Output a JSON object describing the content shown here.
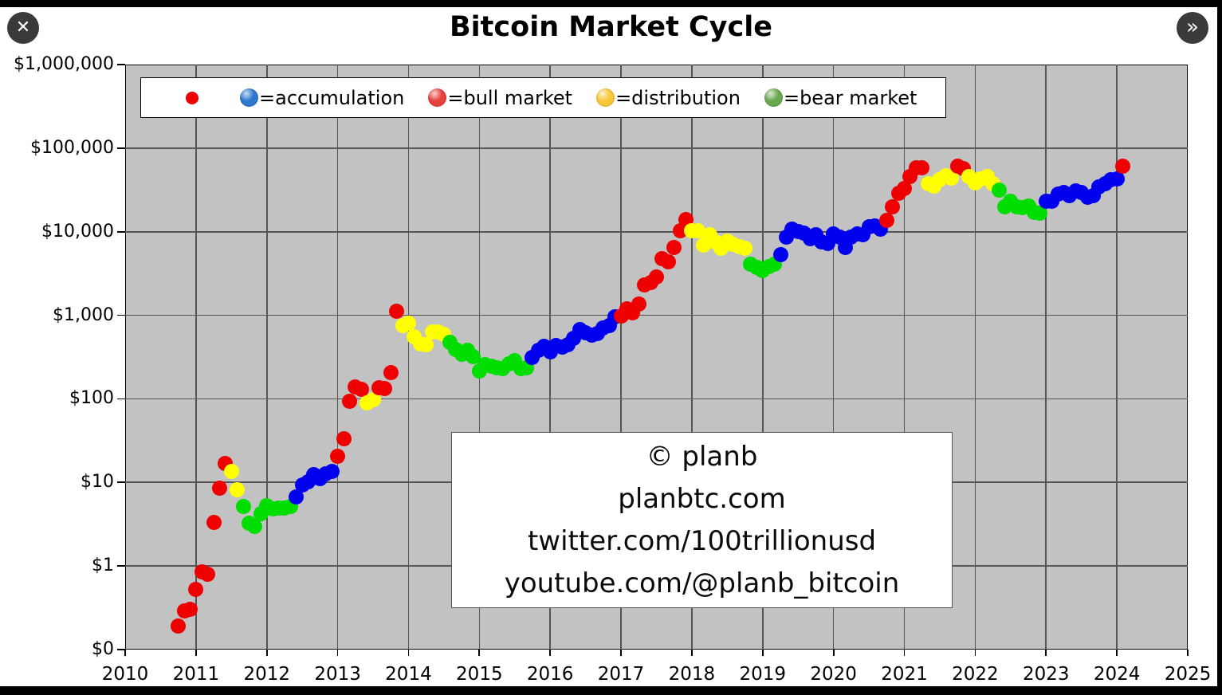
{
  "header": {
    "title": "Bitcoin Market Cycle",
    "close_icon": "✕",
    "forward_icon": "»"
  },
  "legend": {
    "marker": {
      "label": "",
      "color": "#ee0000"
    },
    "items": [
      {
        "label": "=accumulation",
        "color": "#2e77d0"
      },
      {
        "label": "=bull market",
        "color": "#e8413c"
      },
      {
        "label": "=distribution",
        "color": "#f8c838"
      },
      {
        "label": "=bear market",
        "color": "#6aa84f"
      }
    ]
  },
  "watermark": {
    "lines": [
      "© planb",
      "planbtc.com",
      "twitter.com/100trillionusd",
      "youtube.com/@planb_bitcoin"
    ]
  },
  "chart_data": {
    "type": "scatter",
    "title": "Bitcoin Market Cycle",
    "x_axis": {
      "min": 2010,
      "max": 2025,
      "ticks": [
        2010,
        2011,
        2012,
        2013,
        2014,
        2015,
        2016,
        2017,
        2018,
        2019,
        2020,
        2021,
        2022,
        2023,
        2024,
        2025
      ]
    },
    "y_axis": {
      "scale": "log",
      "min": 0.1,
      "max": 1000000,
      "ticks": [
        {
          "label": "$1,000,000",
          "value": 1000000
        },
        {
          "label": "$100,000",
          "value": 100000
        },
        {
          "label": "$10,000",
          "value": 10000
        },
        {
          "label": "$1,000",
          "value": 1000
        },
        {
          "label": "$100",
          "value": 100
        },
        {
          "label": "$10",
          "value": 10
        },
        {
          "label": "$1",
          "value": 1
        },
        {
          "label": "$0",
          "value": 0.1
        }
      ]
    },
    "grid": true,
    "legend_position": "top",
    "phase_colors": {
      "accumulation": "#0000ee",
      "bull": "#ee0000",
      "distribution": "#ffff00",
      "bear": "#00dd00"
    },
    "points": [
      [
        "2010-10",
        0.19,
        "bull"
      ],
      [
        "2010-11",
        0.29,
        "bull"
      ],
      [
        "2010-12",
        0.3,
        "bull"
      ],
      [
        "2011-01",
        0.52,
        "bull"
      ],
      [
        "2011-02",
        0.86,
        "bull"
      ],
      [
        "2011-03",
        0.79,
        "bull"
      ],
      [
        "2011-04",
        3.33,
        "bull"
      ],
      [
        "2011-05",
        8.6,
        "bull"
      ],
      [
        "2011-06",
        16.7,
        "bull"
      ],
      [
        "2011-07",
        13.4,
        "distribution"
      ],
      [
        "2011-08",
        8.2,
        "distribution"
      ],
      [
        "2011-09",
        5.14,
        "bear"
      ],
      [
        "2011-10",
        3.27,
        "bear"
      ],
      [
        "2011-11",
        3.0,
        "bear"
      ],
      [
        "2011-12",
        4.25,
        "bear"
      ],
      [
        "2012-01",
        5.27,
        "bear"
      ],
      [
        "2012-02",
        4.87,
        "bear"
      ],
      [
        "2012-03",
        4.92,
        "bear"
      ],
      [
        "2012-04",
        4.93,
        "bear"
      ],
      [
        "2012-05",
        5.19,
        "bear"
      ],
      [
        "2012-06",
        6.7,
        "accumulation"
      ],
      [
        "2012-07",
        9.4,
        "accumulation"
      ],
      [
        "2012-08",
        10.2,
        "accumulation"
      ],
      [
        "2012-09",
        12.4,
        "accumulation"
      ],
      [
        "2012-10",
        11.2,
        "accumulation"
      ],
      [
        "2012-11",
        12.56,
        "accumulation"
      ],
      [
        "2012-12",
        13.45,
        "accumulation"
      ],
      [
        "2013-01",
        20.41,
        "bull"
      ],
      [
        "2013-02",
        33.38,
        "bull"
      ],
      [
        "2013-03",
        93.03,
        "bull"
      ],
      [
        "2013-04",
        139.2,
        "bull"
      ],
      [
        "2013-05",
        128.8,
        "bull"
      ],
      [
        "2013-06",
        89.7,
        "distribution"
      ],
      [
        "2013-07",
        97.5,
        "distribution"
      ],
      [
        "2013-08",
        135.0,
        "bull"
      ],
      [
        "2013-09",
        133.4,
        "bull"
      ],
      [
        "2013-10",
        204.0,
        "bull"
      ],
      [
        "2013-11",
        1120.0,
        "bull"
      ],
      [
        "2013-12",
        754.0,
        "distribution"
      ],
      [
        "2014-01",
        800.0,
        "distribution"
      ],
      [
        "2014-02",
        550.0,
        "distribution"
      ],
      [
        "2014-03",
        450.0,
        "distribution"
      ],
      [
        "2014-04",
        445.0,
        "distribution"
      ],
      [
        "2014-05",
        627.0,
        "distribution"
      ],
      [
        "2014-06",
        635.0,
        "distribution"
      ],
      [
        "2014-07",
        585.0,
        "distribution"
      ],
      [
        "2014-08",
        478.0,
        "bear"
      ],
      [
        "2014-09",
        386.0,
        "bear"
      ],
      [
        "2014-10",
        338.0,
        "bear"
      ],
      [
        "2014-11",
        378.0,
        "bear"
      ],
      [
        "2014-12",
        320.0,
        "bear"
      ],
      [
        "2015-01",
        217.0,
        "bear"
      ],
      [
        "2015-02",
        254.0,
        "bear"
      ],
      [
        "2015-03",
        244.0,
        "bear"
      ],
      [
        "2015-04",
        236.0,
        "bear"
      ],
      [
        "2015-05",
        230.0,
        "bear"
      ],
      [
        "2015-06",
        263.0,
        "bear"
      ],
      [
        "2015-07",
        284.0,
        "bear"
      ],
      [
        "2015-08",
        230.0,
        "bear"
      ],
      [
        "2015-09",
        236.0,
        "bear"
      ],
      [
        "2015-10",
        314.0,
        "accumulation"
      ],
      [
        "2015-11",
        377.0,
        "accumulation"
      ],
      [
        "2015-12",
        430.0,
        "accumulation"
      ],
      [
        "2016-01",
        368.0,
        "accumulation"
      ],
      [
        "2016-02",
        437.0,
        "accumulation"
      ],
      [
        "2016-03",
        416.0,
        "accumulation"
      ],
      [
        "2016-04",
        448.0,
        "accumulation"
      ],
      [
        "2016-05",
        531.0,
        "accumulation"
      ],
      [
        "2016-06",
        673.0,
        "accumulation"
      ],
      [
        "2016-07",
        624.0,
        "accumulation"
      ],
      [
        "2016-08",
        575.0,
        "accumulation"
      ],
      [
        "2016-09",
        610.0,
        "accumulation"
      ],
      [
        "2016-10",
        700.0,
        "accumulation"
      ],
      [
        "2016-11",
        745.0,
        "accumulation"
      ],
      [
        "2016-12",
        963.0,
        "accumulation"
      ],
      [
        "2017-01",
        970,
        "bull"
      ],
      [
        "2017-02",
        1190,
        "bull"
      ],
      [
        "2017-03",
        1080,
        "bull"
      ],
      [
        "2017-04",
        1350,
        "bull"
      ],
      [
        "2017-05",
        2300,
        "bull"
      ],
      [
        "2017-06",
        2480,
        "bull"
      ],
      [
        "2017-07",
        2875,
        "bull"
      ],
      [
        "2017-08",
        4735,
        "bull"
      ],
      [
        "2017-09",
        4360,
        "bull"
      ],
      [
        "2017-10",
        6470,
        "bull"
      ],
      [
        "2017-11",
        10230,
        "bull"
      ],
      [
        "2017-12",
        14100,
        "bull"
      ],
      [
        "2018-01",
        10280,
        "distribution"
      ],
      [
        "2018-02",
        10360,
        "distribution"
      ],
      [
        "2018-03",
        6940,
        "distribution"
      ],
      [
        "2018-04",
        9240,
        "distribution"
      ],
      [
        "2018-05",
        7500,
        "distribution"
      ],
      [
        "2018-06",
        6400,
        "distribution"
      ],
      [
        "2018-07",
        7730,
        "distribution"
      ],
      [
        "2018-08",
        7030,
        "distribution"
      ],
      [
        "2018-09",
        6630,
        "distribution"
      ],
      [
        "2018-10",
        6320,
        "distribution"
      ],
      [
        "2018-11",
        4040,
        "bear"
      ],
      [
        "2018-12",
        3740,
        "bear"
      ],
      [
        "2019-01",
        3440,
        "bear"
      ],
      [
        "2019-02",
        3820,
        "bear"
      ],
      [
        "2019-03",
        4100,
        "bear"
      ],
      [
        "2019-04",
        5320,
        "accumulation"
      ],
      [
        "2019-05",
        8560,
        "accumulation"
      ],
      [
        "2019-06",
        10820,
        "accumulation"
      ],
      [
        "2019-07",
        10090,
        "accumulation"
      ],
      [
        "2019-08",
        9600,
        "accumulation"
      ],
      [
        "2019-09",
        8290,
        "accumulation"
      ],
      [
        "2019-10",
        9150,
        "accumulation"
      ],
      [
        "2019-11",
        7560,
        "accumulation"
      ],
      [
        "2019-12",
        7190,
        "accumulation"
      ],
      [
        "2020-01",
        9350,
        "accumulation"
      ],
      [
        "2020-02",
        8550,
        "accumulation"
      ],
      [
        "2020-03",
        6440,
        "accumulation"
      ],
      [
        "2020-04",
        8630,
        "accumulation"
      ],
      [
        "2020-05",
        9460,
        "accumulation"
      ],
      [
        "2020-06",
        9140,
        "accumulation"
      ],
      [
        "2020-07",
        11360,
        "accumulation"
      ],
      [
        "2020-08",
        11650,
        "accumulation"
      ],
      [
        "2020-09",
        10780,
        "accumulation"
      ],
      [
        "2020-10",
        13800,
        "bull"
      ],
      [
        "2020-11",
        19700,
        "bull"
      ],
      [
        "2020-12",
        29000,
        "bull"
      ],
      [
        "2021-01",
        33100,
        "bull"
      ],
      [
        "2021-02",
        45240,
        "bull"
      ],
      [
        "2021-03",
        58800,
        "bull"
      ],
      [
        "2021-04",
        57750,
        "bull"
      ],
      [
        "2021-05",
        37330,
        "distribution"
      ],
      [
        "2021-06",
        35040,
        "distribution"
      ],
      [
        "2021-07",
        41490,
        "distribution"
      ],
      [
        "2021-08",
        47110,
        "distribution"
      ],
      [
        "2021-09",
        43790,
        "distribution"
      ],
      [
        "2021-10",
        61320,
        "bull"
      ],
      [
        "2021-11",
        57010,
        "bull"
      ],
      [
        "2021-12",
        46220,
        "distribution"
      ],
      [
        "2022-01",
        38480,
        "distribution"
      ],
      [
        "2022-02",
        43190,
        "distribution"
      ],
      [
        "2022-03",
        45540,
        "distribution"
      ],
      [
        "2022-04",
        37650,
        "distribution"
      ],
      [
        "2022-05",
        31790,
        "bear"
      ],
      [
        "2022-06",
        19940,
        "bear"
      ],
      [
        "2022-07",
        23300,
        "bear"
      ],
      [
        "2022-08",
        20050,
        "bear"
      ],
      [
        "2022-09",
        19430,
        "bear"
      ],
      [
        "2022-10",
        20490,
        "bear"
      ],
      [
        "2022-11",
        17160,
        "bear"
      ],
      [
        "2022-12",
        16550,
        "bear"
      ],
      [
        "2023-01",
        23130,
        "accumulation"
      ],
      [
        "2023-02",
        23140,
        "accumulation"
      ],
      [
        "2023-03",
        28470,
        "accumulation"
      ],
      [
        "2023-04",
        29230,
        "accumulation"
      ],
      [
        "2023-05",
        27220,
        "accumulation"
      ],
      [
        "2023-06",
        30480,
        "accumulation"
      ],
      [
        "2023-07",
        29230,
        "accumulation"
      ],
      [
        "2023-08",
        25930,
        "accumulation"
      ],
      [
        "2023-09",
        26970,
        "accumulation"
      ],
      [
        "2023-10",
        34670,
        "accumulation"
      ],
      [
        "2023-11",
        37720,
        "accumulation"
      ],
      [
        "2023-12",
        42260,
        "accumulation"
      ],
      [
        "2024-01",
        42580,
        "accumulation"
      ],
      [
        "2024-02",
        61200,
        "bull"
      ]
    ]
  }
}
